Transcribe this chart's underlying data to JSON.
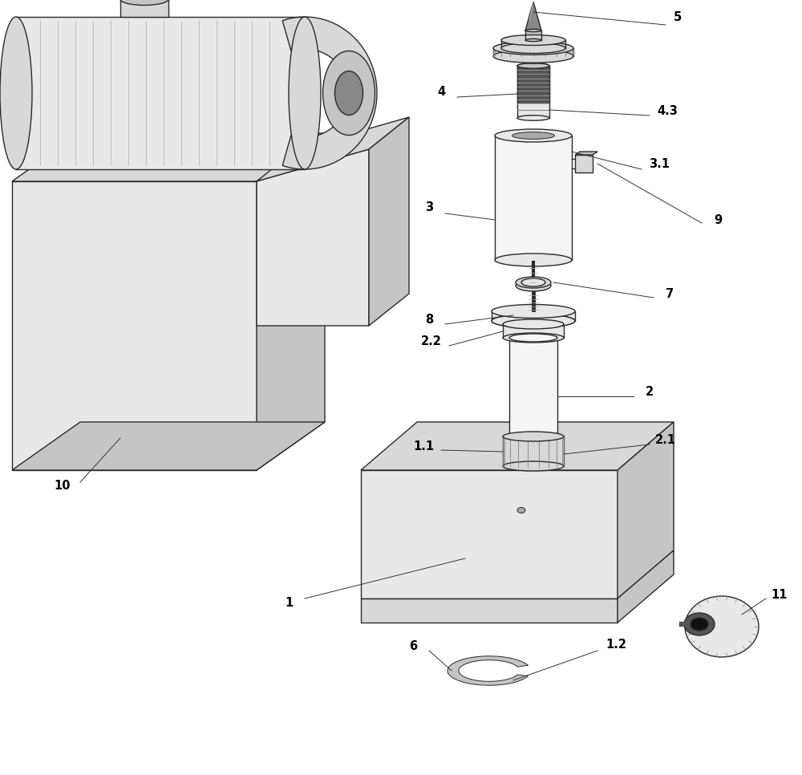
{
  "bg_color": "#ffffff",
  "line_color": "#2a2a2a",
  "gray1": "#f5f5f5",
  "gray2": "#e8e8e8",
  "gray3": "#d8d8d8",
  "gray4": "#c5c5c5",
  "gray5": "#aaaaaa",
  "gray6": "#888888",
  "gray7": "#555555",
  "gray8": "#333333",
  "black": "#111111",
  "ann_color": "#111111"
}
